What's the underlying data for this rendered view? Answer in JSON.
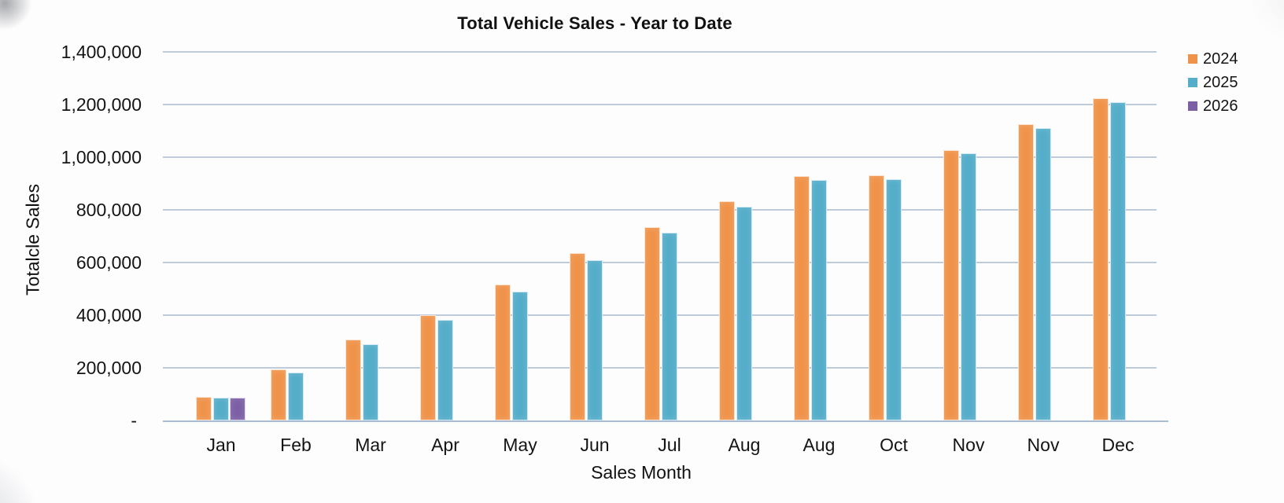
{
  "chart_data": {
    "type": "bar",
    "title": "Total Vehicle Sales - Year to Date",
    "xlabel": "Sales Month",
    "ylabel": "Totalcle Sales",
    "categories": [
      "Jan",
      "Feb",
      "Mar",
      "Apr",
      "May",
      "Jun",
      "Jul",
      "Aug",
      "Aug",
      "Oct",
      "Nov",
      "Nov",
      "Dec"
    ],
    "series": [
      {
        "name": "2024",
        "color": "#F0934A",
        "values": [
          91000,
          195000,
          306000,
          400000,
          515000,
          636000,
          733000,
          833000,
          927000,
          931000,
          1028000,
          1125000,
          1223000
        ]
      },
      {
        "name": "2025",
        "color": "#54ADC9",
        "values": [
          87000,
          182000,
          290000,
          382000,
          489000,
          610000,
          712000,
          812000,
          912000,
          916000,
          1015000,
          1110000,
          1210000
        ]
      },
      {
        "name": "2026",
        "color": "#7C5FA5",
        "values": [
          88000,
          null,
          null,
          null,
          null,
          null,
          null,
          null,
          null,
          null,
          null,
          null,
          null
        ]
      }
    ],
    "y_ticks": [
      "1,400,000",
      "1,200,000",
      "1,000,000",
      "800,000",
      "600,000",
      "400,000",
      "200,000",
      "-"
    ],
    "ylim": [
      0,
      1400000
    ],
    "y_tick_step": 200000,
    "grid": true,
    "legend_position": "top-right",
    "zero_label": "-"
  }
}
